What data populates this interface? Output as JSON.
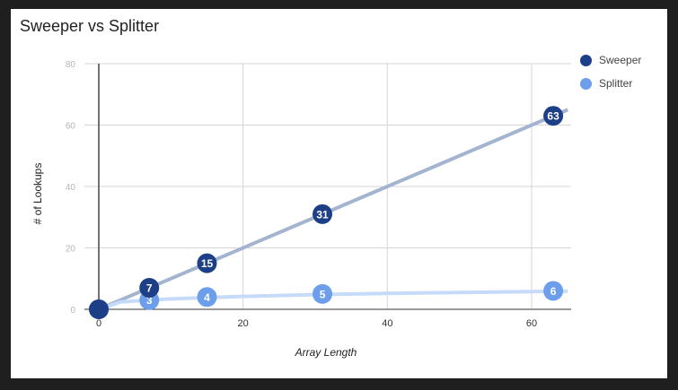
{
  "chart_data": {
    "type": "line",
    "title": "Sweeper vs Splitter",
    "xlabel": "Array Length",
    "ylabel": "# of Lookups",
    "xlim": [
      -2,
      65
    ],
    "ylim": [
      0,
      80
    ],
    "x_ticks": [
      0,
      20,
      40,
      60
    ],
    "y_ticks": [
      0,
      20,
      40,
      60,
      80
    ],
    "grid": true,
    "legend": "right",
    "series": [
      {
        "name": "Sweeper",
        "marker_color": "#1c3f87",
        "line_color": "#a3b4cf",
        "points": [
          {
            "x": 0,
            "y": 0,
            "label": ""
          },
          {
            "x": 7,
            "y": 7,
            "label": "7"
          },
          {
            "x": 15,
            "y": 15,
            "label": "15"
          },
          {
            "x": 31,
            "y": 31,
            "label": "31"
          },
          {
            "x": 63,
            "y": 63,
            "label": "63"
          }
        ],
        "trendline": {
          "x": [
            0,
            65
          ],
          "y": [
            0,
            65
          ]
        }
      },
      {
        "name": "Splitter",
        "marker_color": "#6d9eeb",
        "line_color": "#c6dafa",
        "points": [
          {
            "x": 0,
            "y": 0,
            "label": ""
          },
          {
            "x": 7,
            "y": 3,
            "label": "3"
          },
          {
            "x": 15,
            "y": 4,
            "label": "4"
          },
          {
            "x": 31,
            "y": 5,
            "label": "5"
          },
          {
            "x": 63,
            "y": 6,
            "label": "6"
          }
        ],
        "trendline": {
          "x": [
            0,
            3,
            10,
            20,
            30,
            40,
            50,
            65
          ],
          "y": [
            0,
            2.4,
            3.4,
            4.2,
            4.8,
            5.2,
            5.5,
            5.9
          ]
        }
      }
    ]
  }
}
